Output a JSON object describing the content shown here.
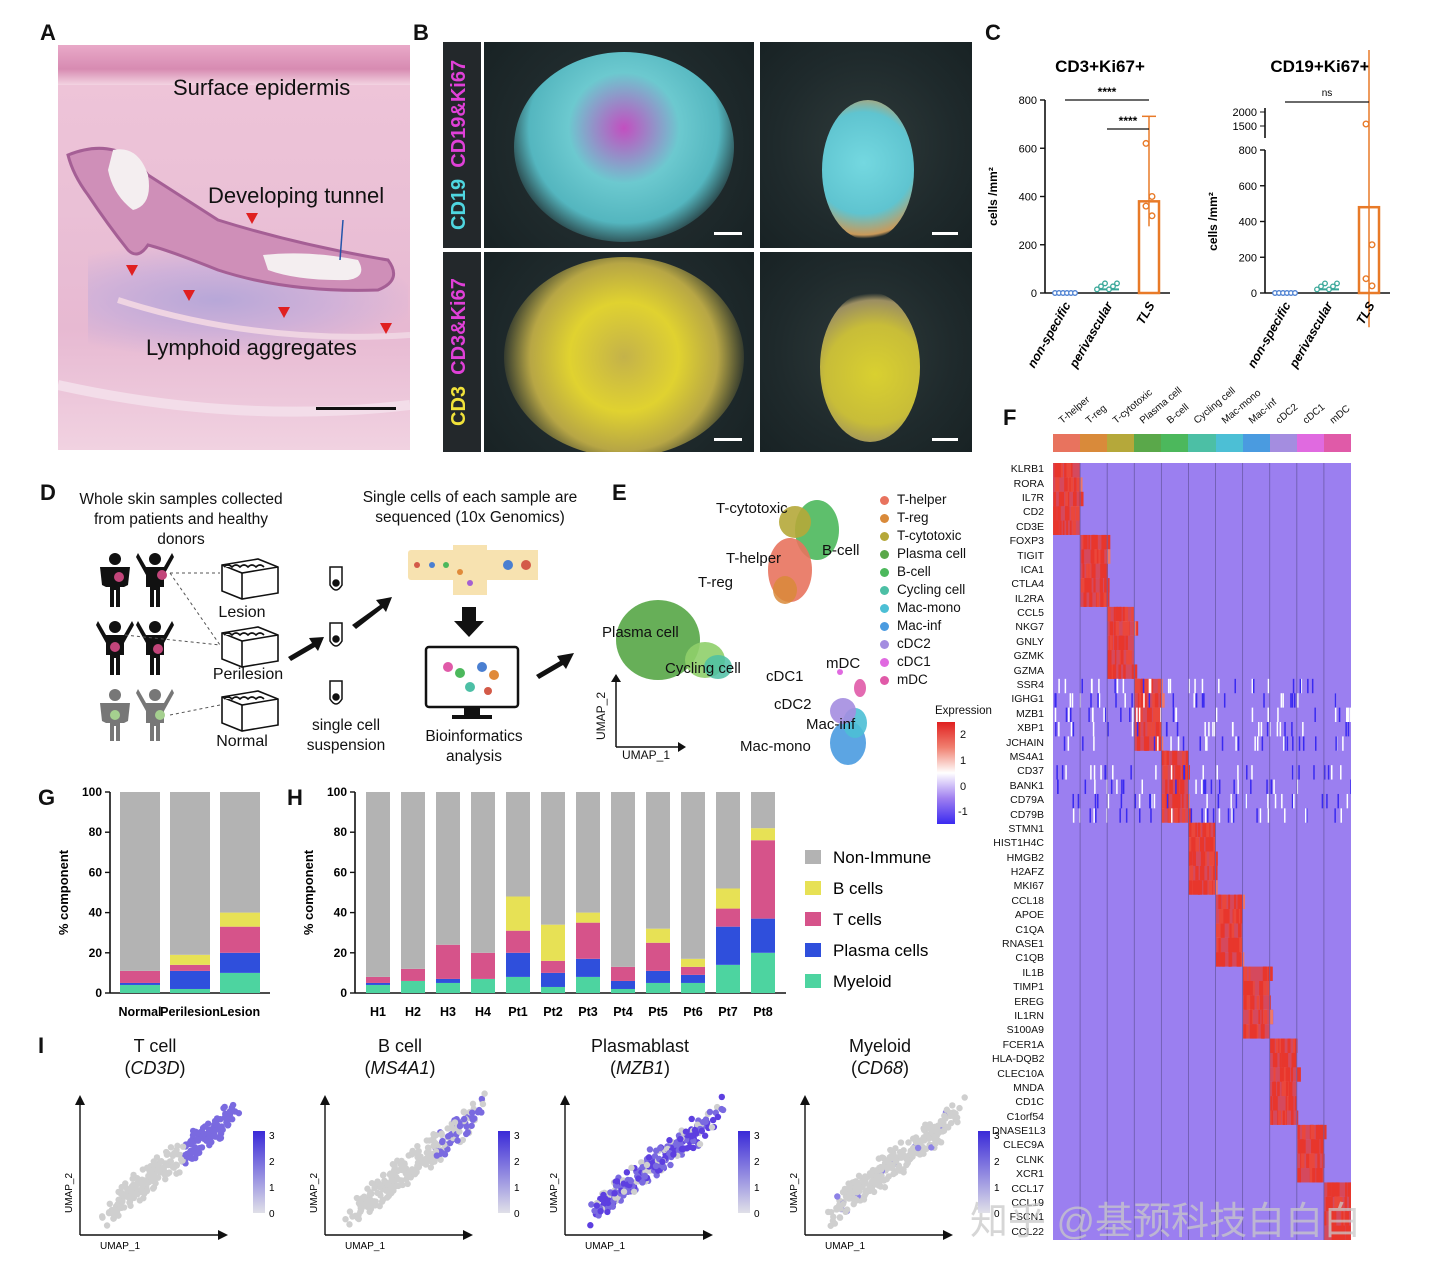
{
  "panels": {
    "A": "A",
    "B": "B",
    "C": "C",
    "D": "D",
    "E": "E",
    "F": "F",
    "G": "G",
    "H": "H",
    "I": "I"
  },
  "panelA": {
    "surface": "Surface epidermis",
    "tunnel": "Developing tunnel",
    "lymphoid": "Lymphoid aggregates"
  },
  "panelB": {
    "row1_a": "CD19",
    "row1_b": "CD19&Ki67",
    "row2_a": "CD3",
    "row2_b": "CD3&Ki67"
  },
  "panelC": {
    "chart1_title": "CD3+Ki67+",
    "chart2_title": "CD19+Ki67+",
    "ylabel": "cells /mm²",
    "sig1": "****",
    "sig2": "****",
    "sig3": "ns"
  },
  "panelD": {
    "text1": "Whole skin samples collected from patients and healthy donors",
    "text2": "Single cells of each sample are sequenced (10x Genomics)",
    "lesion": "Lesion",
    "perilesion": "Perilesion",
    "normal": "Normal",
    "suspension": "single cell suspension",
    "bioinf": "Bioinformatics analysis"
  },
  "panelE": {
    "clusters": [
      "T-cytotoxic",
      "T-helper",
      "B-cell",
      "T-reg",
      "Plasma cell",
      "Cycling cell",
      "cDC1",
      "mDC",
      "cDC2",
      "Mac-inf",
      "Mac-mono"
    ],
    "xlabel": "UMAP_1",
    "ylabel": "UMAP_2",
    "legend": [
      {
        "name": "T-helper",
        "color": "#e8735e"
      },
      {
        "name": "T-reg",
        "color": "#d98a3a"
      },
      {
        "name": "T-cytotoxic",
        "color": "#b5a83a"
      },
      {
        "name": "Plasma cell",
        "color": "#5aa84a"
      },
      {
        "name": "B-cell",
        "color": "#4cb85c"
      },
      {
        "name": "Cycling cell",
        "color": "#4cbfa5"
      },
      {
        "name": "Mac-mono",
        "color": "#4cbfd5"
      },
      {
        "name": "Mac-inf",
        "color": "#4a9be0"
      },
      {
        "name": "cDC2",
        "color": "#a48de0"
      },
      {
        "name": "cDC1",
        "color": "#e06ae0"
      },
      {
        "name": "mDC",
        "color": "#e05aa8"
      }
    ],
    "expr_title": "Expression",
    "expr_ticks": [
      "2",
      "1",
      "0",
      "-1"
    ]
  },
  "panelF": {
    "genes": [
      "KLRB1",
      "RORA",
      "IL7R",
      "CD2",
      "CD3E",
      "FOXP3",
      "TIGIT",
      "ICA1",
      "CTLA4",
      "IL2RA",
      "CCL5",
      "NKG7",
      "GNLY",
      "GZMK",
      "GZMA",
      "SSR4",
      "IGHG1",
      "MZB1",
      "XBP1",
      "JCHAIN",
      "MS4A1",
      "CD37",
      "BANK1",
      "CD79A",
      "CD79B",
      "STMN1",
      "HIST1H4C",
      "HMGB2",
      "H2AFZ",
      "MKI67",
      "CCL18",
      "APOE",
      "C1QA",
      "RNASE1",
      "C1QB",
      "IL1B",
      "TIMP1",
      "EREG",
      "IL1RN",
      "S100A9",
      "FCER1A",
      "HLA-DQB2",
      "CLEC10A",
      "MNDA",
      "CD1C",
      "C1orf54",
      "DNASE1L3",
      "CLEC9A",
      "CLNK",
      "XCR1",
      "CCL17",
      "CCL19",
      "FSCN1",
      "CCL22"
    ],
    "columns": [
      "T-helper",
      "T-reg",
      "T-cytotoxic",
      "Plasma cell",
      "B-cell",
      "Cycling cell",
      "Mac-mono",
      "Mac-inf",
      "cDC2",
      "cDC1",
      "mDC"
    ]
  },
  "watermark": "知乎 @基预科技白白白",
  "panelI": {
    "items": [
      {
        "title": "T cell",
        "gene": "CD3D"
      },
      {
        "title": "B cell",
        "gene": "MS4A1"
      },
      {
        "title": "Plasmablast",
        "gene": "MZB1"
      },
      {
        "title": "Myeloid",
        "gene": "CD68"
      }
    ],
    "xlabel": "UMAP_1",
    "ylabel": "UMAP_2",
    "ticks": [
      "3",
      "2",
      "1",
      "0"
    ]
  },
  "chart_data": [
    {
      "type": "bar",
      "title": "CD3+Ki67+",
      "categories": [
        "non-specific",
        "perivascular",
        "TLS"
      ],
      "values": [
        0,
        15,
        380
      ],
      "ylabel": "cells /mm²",
      "ylim": [
        0,
        800
      ],
      "yticks": [
        0,
        200,
        400,
        600,
        800
      ]
    },
    {
      "type": "bar",
      "title": "CD19+Ki67+",
      "categories": [
        "non-specific",
        "perivascular",
        "TLS"
      ],
      "values": [
        0,
        20,
        480
      ],
      "ylabel": "cells /mm²",
      "ylim": [
        0,
        800
      ],
      "yticks": [
        0,
        200,
        400,
        600,
        800
      ],
      "ybreak_ticks": [
        1500,
        2000
      ]
    },
    {
      "type": "bar",
      "title": "",
      "ylabel": "% component",
      "categories": [
        "Normal",
        "Perilesion",
        "Lesion"
      ],
      "ylim": [
        0,
        100
      ],
      "yticks": [
        0,
        20,
        40,
        60,
        80,
        100
      ],
      "series": [
        {
          "name": "Myeloid",
          "values": [
            4,
            2,
            10
          ]
        },
        {
          "name": "Plasma cells",
          "values": [
            1,
            9,
            10
          ]
        },
        {
          "name": "T cells",
          "values": [
            6,
            3,
            13
          ]
        },
        {
          "name": "B cells",
          "values": [
            0,
            5,
            7
          ]
        },
        {
          "name": "Non-Immune",
          "values": [
            89,
            81,
            60
          ]
        }
      ]
    },
    {
      "type": "bar",
      "title": "",
      "ylabel": "% component",
      "categories": [
        "H1",
        "H2",
        "H3",
        "H4",
        "Pt1",
        "Pt2",
        "Pt3",
        "Pt4",
        "Pt5",
        "Pt6",
        "Pt7",
        "Pt8"
      ],
      "ylim": [
        0,
        100
      ],
      "yticks": [
        0,
        20,
        40,
        60,
        80,
        100
      ],
      "series": [
        {
          "name": "Myeloid",
          "values": [
            4,
            6,
            5,
            7,
            8,
            3,
            8,
            2,
            5,
            5,
            14,
            20
          ]
        },
        {
          "name": "Plasma cells",
          "values": [
            1,
            0,
            2,
            0,
            12,
            7,
            9,
            4,
            6,
            4,
            19,
            17
          ]
        },
        {
          "name": "T cells",
          "values": [
            3,
            6,
            17,
            13,
            11,
            6,
            18,
            7,
            14,
            4,
            9,
            39
          ]
        },
        {
          "name": "B cells",
          "values": [
            0,
            0,
            0,
            0,
            17,
            18,
            5,
            0,
            7,
            4,
            10,
            6
          ]
        },
        {
          "name": "Non-Immune",
          "values": [
            92,
            88,
            76,
            80,
            52,
            66,
            60,
            87,
            68,
            83,
            48,
            18
          ]
        }
      ],
      "legend": [
        "Non-Immune",
        "B cells",
        "T cells",
        "Plasma cells",
        "Myeloid"
      ],
      "colors": {
        "Non-Immune": "#b3b3b3",
        "B cells": "#e7e155",
        "T cells": "#d6538a",
        "Plasma cells": "#2f4fdc",
        "Myeloid": "#4dd4a0"
      }
    }
  ]
}
